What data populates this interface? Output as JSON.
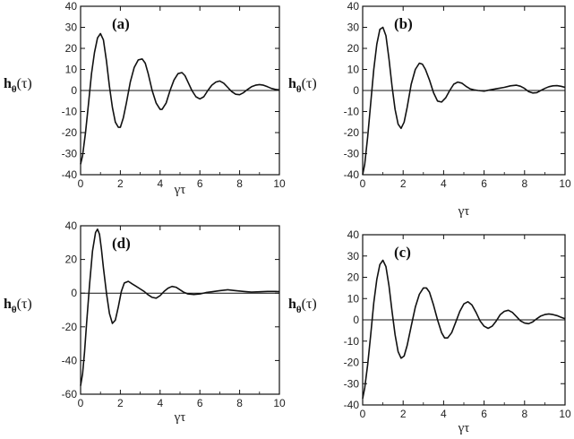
{
  "chart_data": [
    {
      "type": "line",
      "panel_label": "(a)",
      "ylabel_main": "h",
      "ylabel_sub": "θ",
      "ylabel_arg": "(τ)",
      "xlabel": "γτ",
      "xlim": [
        0,
        10
      ],
      "ylim": [
        -40,
        40
      ],
      "xticks": [
        0,
        2,
        4,
        6,
        8,
        10
      ],
      "yticks": [
        -40,
        -30,
        -20,
        -10,
        0,
        10,
        20,
        30,
        40
      ],
      "series": [
        {
          "color": "#111111",
          "x": [
            0,
            0.1,
            0.25,
            0.4,
            0.55,
            0.7,
            0.85,
            1.0,
            1.15,
            1.3,
            1.45,
            1.6,
            1.75,
            1.9,
            2.0,
            2.15,
            2.3,
            2.5,
            2.7,
            2.9,
            3.1,
            3.25,
            3.4,
            3.6,
            3.8,
            4.0,
            4.1,
            4.3,
            4.5,
            4.7,
            4.9,
            5.1,
            5.25,
            5.4,
            5.6,
            5.8,
            6.0,
            6.2,
            6.4,
            6.6,
            6.8,
            7.0,
            7.2,
            7.4,
            7.6,
            7.8,
            8.0,
            8.2,
            8.4,
            8.6,
            8.8,
            9.0,
            9.2,
            9.4,
            9.6,
            9.8,
            10.0
          ],
          "y": [
            -35,
            -31,
            -20,
            -6,
            8,
            18,
            25,
            27,
            24,
            14,
            2,
            -8,
            -15,
            -17.5,
            -17.5,
            -13,
            -6,
            4,
            11,
            14.5,
            15,
            13,
            8,
            0,
            -6,
            -9,
            -9,
            -6,
            0,
            5,
            8,
            8.5,
            7,
            4,
            0,
            -3,
            -4,
            -3,
            0,
            2.5,
            4,
            4.5,
            3.5,
            1.5,
            -0.5,
            -1.8,
            -2,
            -1,
            0.5,
            1.8,
            2.5,
            2.8,
            2.5,
            1.8,
            1,
            0.5,
            0.3
          ]
        }
      ]
    },
    {
      "type": "line",
      "panel_label": "(b)",
      "ylabel_main": "h",
      "ylabel_sub": "θ",
      "ylabel_arg": "(τ)",
      "xlabel": "γτ",
      "xlim": [
        0,
        10
      ],
      "ylim": [
        -40,
        40
      ],
      "xticks": [
        0,
        2,
        4,
        6,
        8,
        10
      ],
      "yticks": [
        -40,
        -30,
        -20,
        -10,
        0,
        10,
        20,
        30,
        40
      ],
      "series": [
        {
          "color": "#111111",
          "x": [
            0,
            0.1,
            0.25,
            0.4,
            0.55,
            0.7,
            0.85,
            1.0,
            1.15,
            1.3,
            1.45,
            1.6,
            1.75,
            1.9,
            2.05,
            2.2,
            2.4,
            2.6,
            2.8,
            2.95,
            3.1,
            3.3,
            3.5,
            3.7,
            3.9,
            4.1,
            4.3,
            4.5,
            4.7,
            4.9,
            5.1,
            5.3,
            5.5,
            5.7,
            6.0,
            6.3,
            6.6,
            7.0,
            7.3,
            7.6,
            7.8,
            8.0,
            8.2,
            8.4,
            8.6,
            8.8,
            9.0,
            9.2,
            9.4,
            9.6,
            9.8,
            10.0
          ],
          "y": [
            -40,
            -35,
            -22,
            -6,
            10,
            22,
            29,
            30,
            26,
            15,
            2,
            -9,
            -16,
            -18,
            -15,
            -8,
            3,
            10,
            13,
            12.5,
            10,
            5,
            -1,
            -5,
            -5.5,
            -3.5,
            0,
            3,
            4,
            3.5,
            2,
            0.8,
            0.3,
            0,
            -0.3,
            0.3,
            0.8,
            1.5,
            2.2,
            2.5,
            2,
            1,
            -0.5,
            -1.2,
            -1,
            0,
            1,
            1.8,
            2.2,
            2.3,
            2,
            1.5
          ]
        }
      ]
    },
    {
      "type": "line",
      "panel_label": "(d)",
      "ylabel_main": "h",
      "ylabel_sub": "θ",
      "ylabel_arg": "(τ)",
      "xlabel": "γτ",
      "xlim": [
        0,
        10
      ],
      "ylim": [
        -60,
        40
      ],
      "xticks": [
        0,
        2,
        4,
        6,
        8,
        10
      ],
      "yticks": [
        -60,
        -40,
        -20,
        0,
        20,
        40
      ],
      "series": [
        {
          "color": "#111111",
          "x": [
            0,
            0.1,
            0.2,
            0.3,
            0.45,
            0.6,
            0.75,
            0.85,
            0.95,
            1.05,
            1.15,
            1.3,
            1.45,
            1.6,
            1.75,
            1.9,
            2.05,
            2.2,
            2.4,
            2.6,
            2.8,
            3.0,
            3.2,
            3.4,
            3.6,
            3.8,
            4.0,
            4.2,
            4.4,
            4.6,
            4.8,
            5.0,
            5.2,
            5.4,
            5.7,
            6.0,
            6.3,
            6.6,
            7.0,
            7.4,
            7.8,
            8.2,
            8.6,
            9.0,
            9.4,
            9.8,
            10.0
          ],
          "y": [
            -55,
            -48,
            -35,
            -18,
            5,
            25,
            36,
            38,
            35,
            26,
            15,
            0,
            -12,
            -18,
            -16,
            -8,
            1,
            6,
            7,
            5.5,
            4,
            2.5,
            1,
            -1,
            -2.5,
            -3,
            -1.5,
            1,
            3,
            4,
            3.5,
            2,
            0.5,
            -0.5,
            -0.8,
            -0.5,
            0.3,
            0.8,
            1.5,
            2,
            1.5,
            1,
            0.6,
            0.8,
            1,
            1,
            0.9
          ]
        }
      ]
    },
    {
      "type": "line",
      "panel_label": "(c)",
      "ylabel_main": "h",
      "ylabel_sub": "θ",
      "ylabel_arg": "(τ)",
      "xlabel": "γτ",
      "xlim": [
        0,
        10
      ],
      "ylim": [
        -40,
        40
      ],
      "xticks": [
        0,
        2,
        4,
        6,
        8,
        10
      ],
      "yticks": [
        -40,
        -30,
        -20,
        -10,
        0,
        10,
        20,
        30,
        40
      ],
      "series": [
        {
          "color": "#111111",
          "x": [
            0,
            0.1,
            0.25,
            0.4,
            0.55,
            0.7,
            0.85,
            1.0,
            1.15,
            1.3,
            1.45,
            1.6,
            1.75,
            1.9,
            2.05,
            2.2,
            2.4,
            2.6,
            2.8,
            3.0,
            3.15,
            3.3,
            3.5,
            3.7,
            3.9,
            4.05,
            4.2,
            4.4,
            4.6,
            4.8,
            5.0,
            5.2,
            5.4,
            5.6,
            5.8,
            6.0,
            6.2,
            6.4,
            6.6,
            6.8,
            7.0,
            7.2,
            7.4,
            7.6,
            7.8,
            8.0,
            8.2,
            8.4,
            8.6,
            8.8,
            9.0,
            9.2,
            9.4,
            9.6,
            9.8,
            10.0
          ],
          "y": [
            -37,
            -32,
            -21,
            -7,
            8,
            19,
            26,
            28,
            25,
            16,
            4,
            -7,
            -15,
            -18,
            -17,
            -12,
            -3,
            6,
            12,
            15,
            15,
            13,
            7,
            0,
            -6,
            -8.5,
            -8.5,
            -6,
            -1,
            4,
            7.5,
            8.5,
            7,
            3.5,
            -0.5,
            -3,
            -4,
            -3,
            -0.5,
            2.5,
            4,
            4.5,
            3.5,
            1.5,
            -0.5,
            -1.5,
            -1.8,
            -1,
            0.5,
            1.8,
            2.5,
            2.8,
            2.5,
            2,
            1.2,
            0.5
          ]
        }
      ]
    }
  ]
}
